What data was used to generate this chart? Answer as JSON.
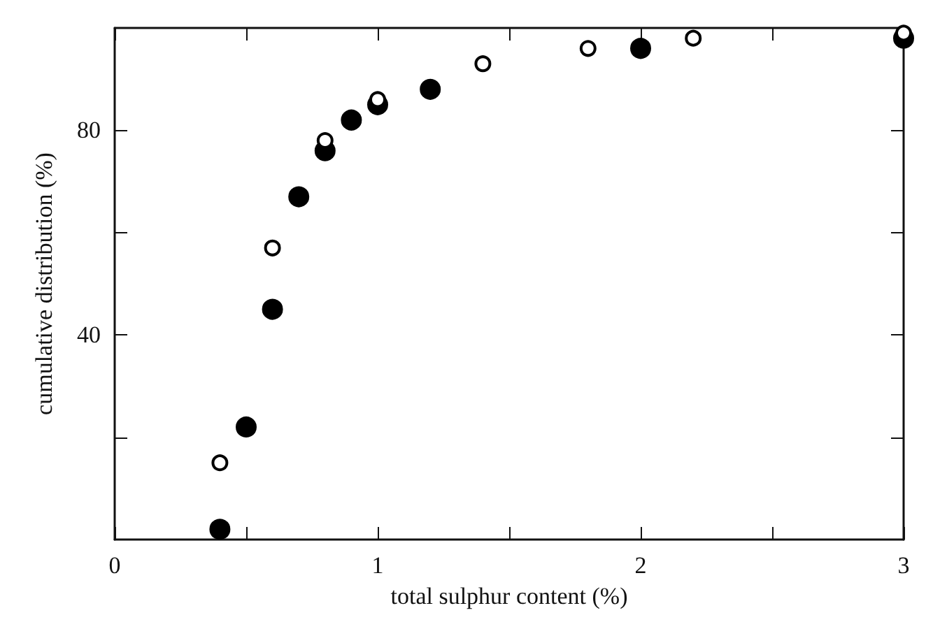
{
  "chart_data": {
    "type": "scatter",
    "xlabel": "total sulphur content (%)",
    "ylabel": "cumulative distribution (%)",
    "xlim": [
      0,
      3
    ],
    "ylim": [
      0,
      100
    ],
    "xticks": [
      0,
      {
        "value": 0.5,
        "label": null
      },
      1,
      {
        "value": 1.5,
        "label": null
      },
      2,
      {
        "value": 2.5,
        "label": null
      },
      3
    ],
    "yticks": [
      {
        "value": 20,
        "label": null
      },
      40,
      {
        "value": 60,
        "label": null
      },
      80
    ],
    "grid": false,
    "marker": "circle",
    "series": [
      {
        "color": "#000000",
        "x": [
          0.4,
          0.5,
          0.6,
          0.7,
          0.8,
          0.9,
          1.0,
          1.2,
          2.0,
          3.0
        ],
        "values": [
          2,
          22,
          45,
          67,
          76,
          82,
          85,
          88,
          96,
          98
        ]
      },
      {
        "color": "#ffffff",
        "x": [
          0.4,
          0.6,
          0.8,
          1.0,
          1.4,
          1.8,
          2.2,
          3.0
        ],
        "values": [
          15,
          57,
          78,
          86,
          93,
          96,
          98,
          99
        ]
      }
    ]
  }
}
